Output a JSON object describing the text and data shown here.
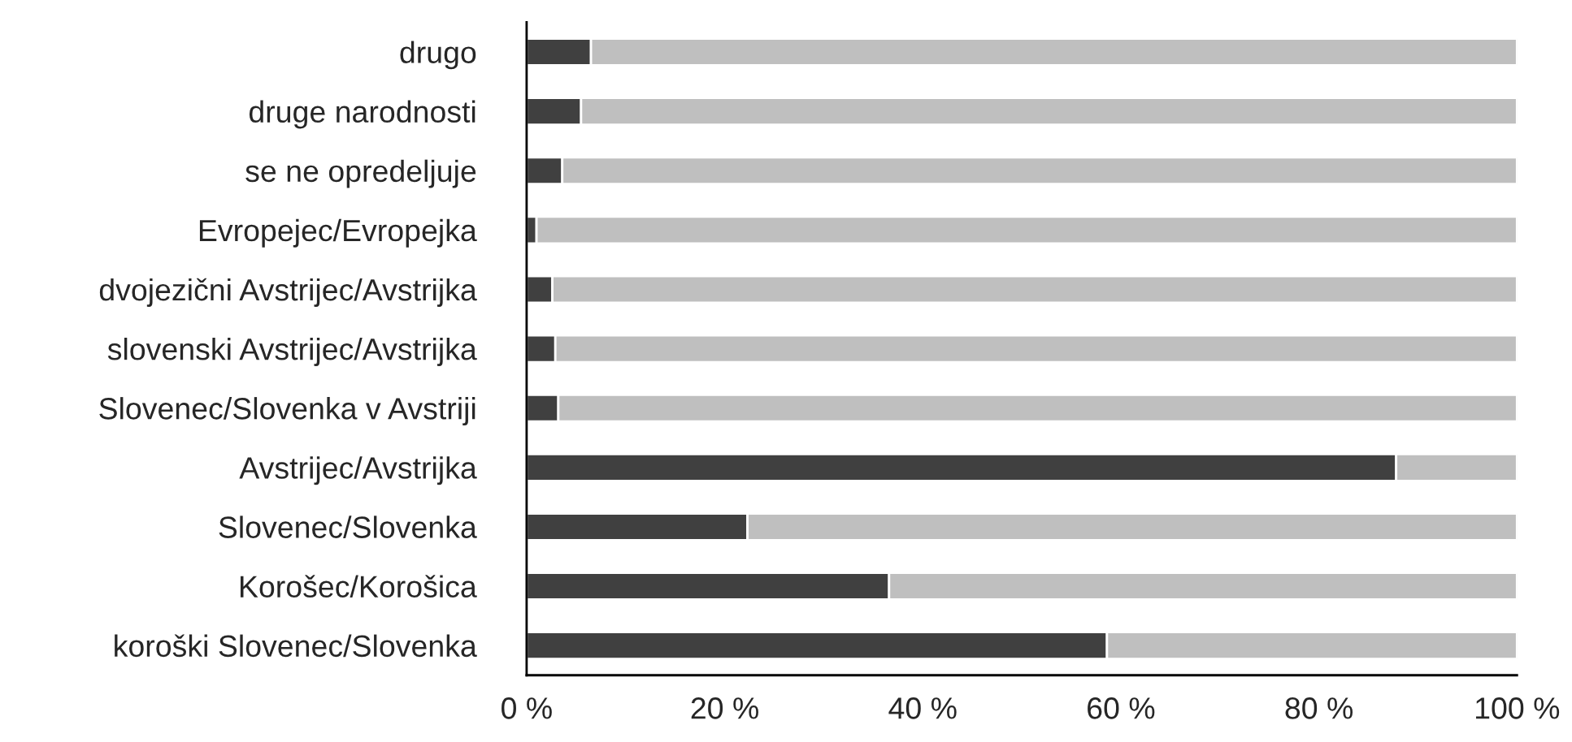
{
  "chart_data": {
    "type": "bar",
    "orientation": "horizontal",
    "stacked": true,
    "categories": [
      "drugo",
      "druge narodnosti",
      "se ne opredeljuje",
      "Evropejec/Evropejka",
      "dvojezični Avstrijec/Avstrijka",
      "slovenski Avstrijec/Avstrijka",
      "Slovenec/Slovenka v Avstriji",
      "Avstrijec/Avstrijka",
      "Slovenec/Slovenka",
      "Korošec/Korošica",
      "koroški Slovenec/Slovenka"
    ],
    "series": [
      {
        "color": "#404040",
        "values": [
          6.5,
          5.5,
          3.6,
          1.0,
          2.6,
          2.9,
          3.2,
          87.8,
          22.3,
          36.6,
          58.6
        ]
      },
      {
        "color": "#bfbfbf",
        "values": [
          93.5,
          94.5,
          96.4,
          99.0,
          97.4,
          97.1,
          96.8,
          12.2,
          77.7,
          63.4,
          41.4
        ]
      }
    ],
    "xlim": [
      0,
      100
    ],
    "xticks": [
      {
        "value": 0,
        "label": "0 %"
      },
      {
        "value": 20,
        "label": "20 %"
      },
      {
        "value": 40,
        "label": "40 %"
      },
      {
        "value": 60,
        "label": "60 %"
      },
      {
        "value": 80,
        "label": "80 %"
      },
      {
        "value": 100,
        "label": "100 %"
      }
    ],
    "grid": false,
    "legend": false
  }
}
